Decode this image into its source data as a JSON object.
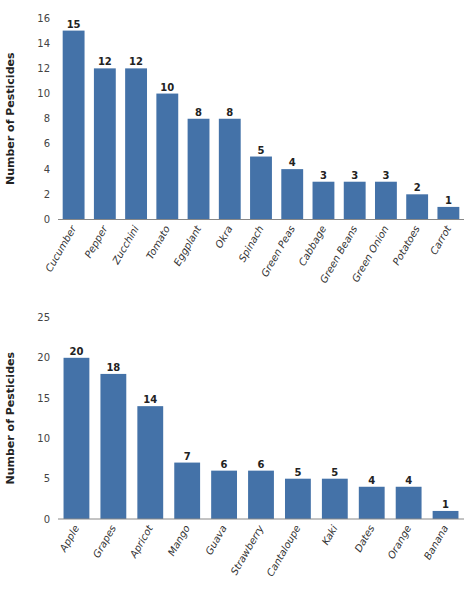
{
  "chart_data": [
    {
      "type": "bar",
      "categories": [
        "Cucumber",
        "Pepper",
        "Zucchini",
        "Tomato",
        "Eggplant",
        "Okra",
        "Spinach",
        "Green Peas",
        "Cabbage",
        "Green Beans",
        "Green Onion",
        "Potatoes",
        "Carrot"
      ],
      "values": [
        15,
        12,
        12,
        10,
        8,
        8,
        5,
        4,
        3,
        3,
        3,
        2,
        1
      ],
      "color": "#4472a8",
      "ylabel": "Number of Pesticides",
      "ylim": [
        0,
        16
      ],
      "yticks": [
        0,
        2,
        4,
        6,
        8,
        10,
        12,
        14,
        16
      ],
      "grid": false,
      "data_labels": true
    },
    {
      "type": "bar",
      "categories": [
        "Apple",
        "Grapes",
        "Apricot",
        "Mango",
        "Guava",
        "Strawberry",
        "Cantaloupe",
        "Kaki",
        "Dates",
        "Orange",
        "Banana"
      ],
      "values": [
        20,
        18,
        14,
        7,
        6,
        6,
        5,
        5,
        4,
        4,
        1
      ],
      "color": "#4472a8",
      "ylabel": "Number of Pesticides",
      "ylim": [
        0,
        25
      ],
      "yticks": [
        0,
        5,
        10,
        15,
        20,
        25
      ],
      "grid": false,
      "data_labels": true
    }
  ]
}
